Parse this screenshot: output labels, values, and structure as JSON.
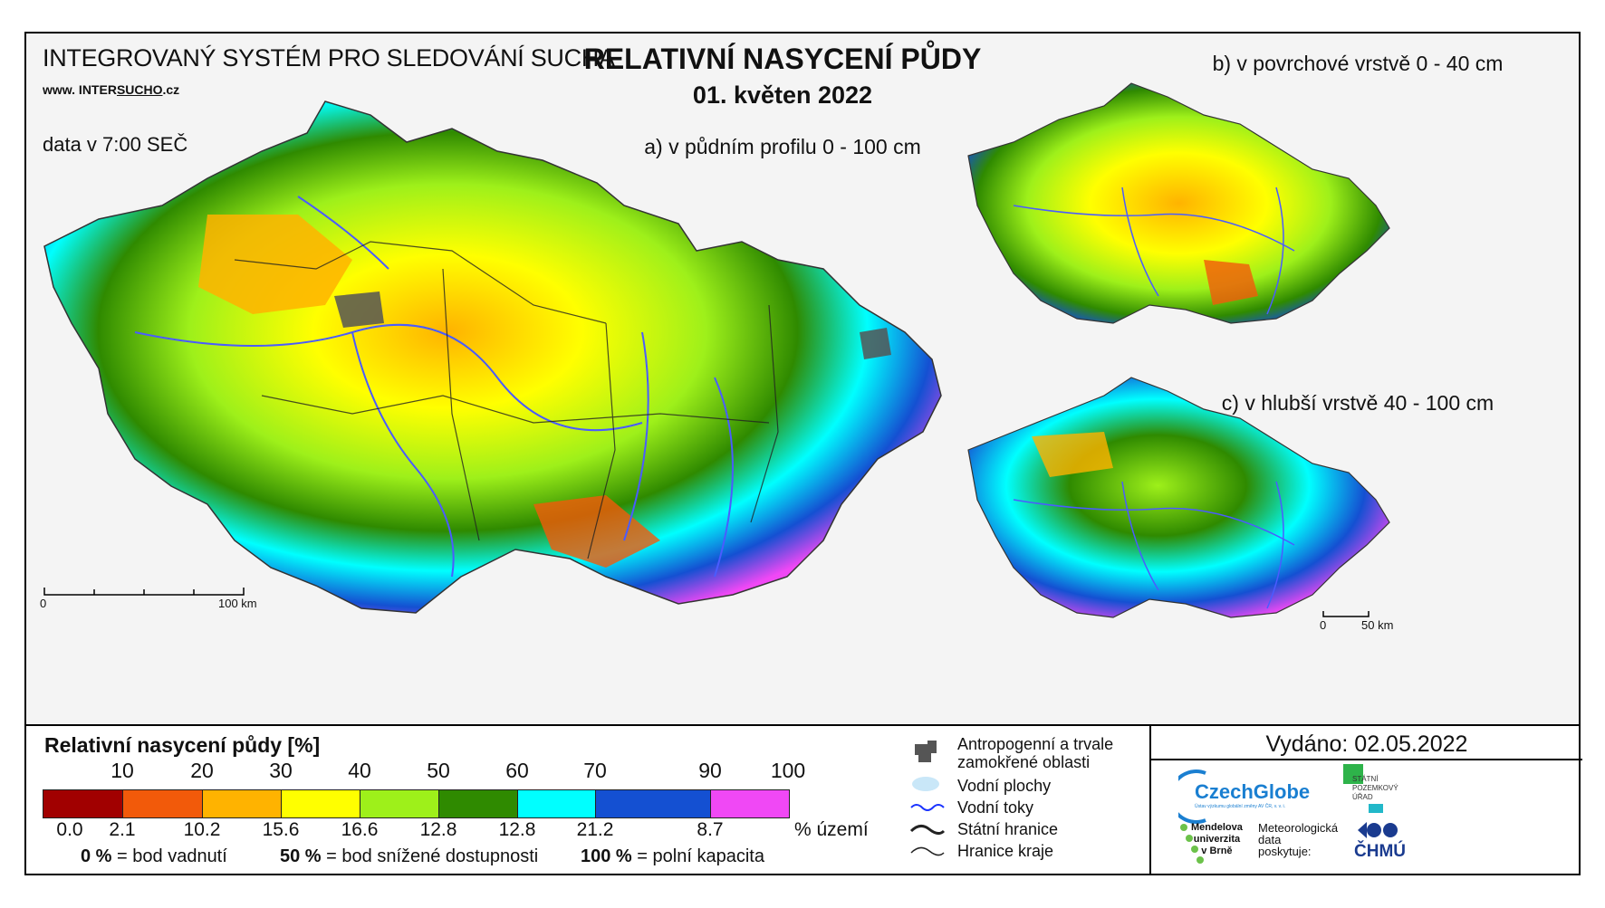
{
  "header": {
    "system_title": "INTEGROVANÝ SYSTÉM PRO SLEDOVÁNÍ SUCHA",
    "website_prefix": "www. INTER",
    "website_u": "SUCHO",
    "website_suffix": ".cz",
    "data_time": "data v 7:00 SEČ",
    "main_title": "RELATIVNÍ NASYCENÍ PŮDY",
    "date": "01. květen 2022"
  },
  "maps": {
    "a_label": "a) v půdním profilu 0 - 100 cm",
    "b_label": "b) v povrchové vrstvě 0 - 40 cm",
    "c_label": "c) v hlubší vrstvě 40 - 100 cm",
    "scale_a": {
      "start": "0",
      "end": "100 km"
    },
    "scale_small": {
      "start": "0",
      "end": "50 km"
    }
  },
  "legend": {
    "title": "Relativní nasycení půdy [%]",
    "ticks": [
      "10",
      "20",
      "30",
      "40",
      "50",
      "60",
      "70",
      "90",
      "100"
    ],
    "bins": [
      {
        "color": "#a10000",
        "share": "0.0"
      },
      {
        "color": "#f25a0a",
        "share": "2.1"
      },
      {
        "color": "#ffb300",
        "share": "10.2"
      },
      {
        "color": "#ffff00",
        "share": "15.6"
      },
      {
        "color": "#9ef01a",
        "share": "16.6"
      },
      {
        "color": "#2f8a00",
        "share": "12.8"
      },
      {
        "color": "#00ffff",
        "share": "12.8"
      },
      {
        "color": "#1450d2",
        "share": "21.2"
      },
      {
        "color": "#f048f5",
        "share": "8.7"
      }
    ],
    "share_unit": "% území",
    "notes": [
      {
        "value": "0 %",
        "text": "= bod vadnutí"
      },
      {
        "value": "50 %",
        "text": "= bod snížené dostupnosti"
      },
      {
        "value": "100 %",
        "text": "= polní kapacita"
      }
    ]
  },
  "symbols": {
    "urban": "Antropogenní a trvale zamokřené oblasti",
    "water_bodies": "Vodní plochy",
    "rivers": "Vodní toky",
    "state_border": "Státní hranice",
    "region_border": "Hranice kraje"
  },
  "footer": {
    "issued": "Vydáno: 02.05.2022",
    "czechglobe": "CzechGlobe",
    "czechglobe_sub": "Ústav výzkumu globální změny AV ČR, v. v. i.",
    "spu_line1": "STÁTNÍ",
    "spu_line2": "POZEMKOVÝ",
    "spu_line3": "ÚŘAD",
    "mendel_1": "Mendelova",
    "mendel_2": "univerzita",
    "mendel_3": "v Brně",
    "met_1": "Meteorologická",
    "met_2": "data",
    "met_3": "poskytuje:",
    "chmu": "ČHMÚ"
  }
}
